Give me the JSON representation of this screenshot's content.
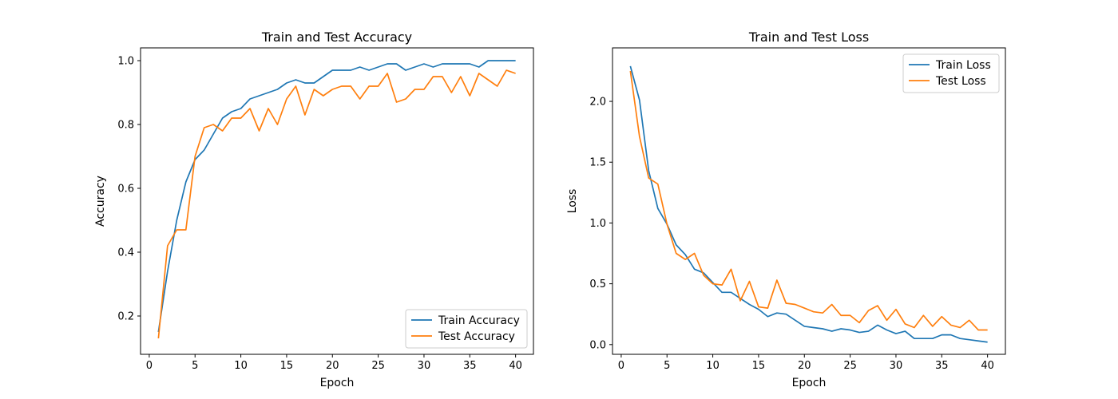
{
  "chart_data": [
    {
      "type": "line",
      "title": "Train and Test Accuracy",
      "xlabel": "Epoch",
      "ylabel": "Accuracy",
      "xlim": [
        -0.95,
        41.95
      ],
      "ylim": [
        0.08,
        1.04
      ],
      "xticks": [
        0,
        5,
        10,
        15,
        20,
        25,
        30,
        35,
        40
      ],
      "yticks": [
        0.2,
        0.4,
        0.6,
        0.8,
        1.0
      ],
      "ytick_labels": [
        "0.2",
        "0.4",
        "0.6",
        "0.8",
        "1.0"
      ],
      "legend_position": "lower-right",
      "x": [
        1,
        2,
        3,
        4,
        5,
        6,
        7,
        8,
        9,
        10,
        11,
        12,
        13,
        14,
        15,
        16,
        17,
        18,
        19,
        20,
        21,
        22,
        23,
        24,
        25,
        26,
        27,
        28,
        29,
        30,
        31,
        32,
        33,
        34,
        35,
        36,
        37,
        38,
        39,
        40
      ],
      "series": [
        {
          "name": "Train Accuracy",
          "color": "#1f77b4",
          "values": [
            0.15,
            0.34,
            0.5,
            0.62,
            0.69,
            0.72,
            0.77,
            0.82,
            0.84,
            0.85,
            0.88,
            0.89,
            0.9,
            0.91,
            0.93,
            0.94,
            0.93,
            0.93,
            0.95,
            0.97,
            0.97,
            0.97,
            0.98,
            0.97,
            0.98,
            0.99,
            0.99,
            0.97,
            0.98,
            0.99,
            0.98,
            0.99,
            0.99,
            0.99,
            0.99,
            0.98,
            1.0,
            1.0,
            1.0,
            1.0
          ]
        },
        {
          "name": "Test Accuracy",
          "color": "#ff7f0e",
          "values": [
            0.13,
            0.42,
            0.47,
            0.47,
            0.7,
            0.79,
            0.8,
            0.78,
            0.82,
            0.82,
            0.85,
            0.78,
            0.85,
            0.8,
            0.88,
            0.92,
            0.83,
            0.91,
            0.89,
            0.91,
            0.92,
            0.92,
            0.88,
            0.92,
            0.92,
            0.96,
            0.87,
            0.88,
            0.91,
            0.91,
            0.95,
            0.95,
            0.9,
            0.95,
            0.89,
            0.96,
            0.94,
            0.92,
            0.97,
            0.96
          ]
        }
      ]
    },
    {
      "type": "line",
      "title": "Train and Test Loss",
      "xlabel": "Epoch",
      "ylabel": "Loss",
      "xlim": [
        -0.95,
        41.95
      ],
      "ylim": [
        -0.08,
        2.44
      ],
      "xticks": [
        0,
        5,
        10,
        15,
        20,
        25,
        30,
        35,
        40
      ],
      "yticks": [
        0.0,
        0.5,
        1.0,
        1.5,
        2.0
      ],
      "ytick_labels": [
        "0.0",
        "0.5",
        "1.0",
        "1.5",
        "2.0"
      ],
      "legend_position": "upper-right",
      "x": [
        1,
        2,
        3,
        4,
        5,
        6,
        7,
        8,
        9,
        10,
        11,
        12,
        13,
        14,
        15,
        16,
        17,
        18,
        19,
        20,
        21,
        22,
        23,
        24,
        25,
        26,
        27,
        28,
        29,
        30,
        31,
        32,
        33,
        34,
        35,
        36,
        37,
        38,
        39,
        40
      ],
      "series": [
        {
          "name": "Train Loss",
          "color": "#1f77b4",
          "values": [
            2.29,
            2.01,
            1.43,
            1.12,
            0.99,
            0.82,
            0.74,
            0.62,
            0.59,
            0.51,
            0.43,
            0.43,
            0.38,
            0.33,
            0.29,
            0.23,
            0.26,
            0.25,
            0.2,
            0.15,
            0.14,
            0.13,
            0.11,
            0.13,
            0.12,
            0.1,
            0.11,
            0.16,
            0.12,
            0.09,
            0.11,
            0.05,
            0.05,
            0.05,
            0.08,
            0.08,
            0.05,
            0.04,
            0.03,
            0.02
          ]
        },
        {
          "name": "Test Loss",
          "color": "#ff7f0e",
          "values": [
            2.25,
            1.71,
            1.37,
            1.32,
            0.99,
            0.75,
            0.7,
            0.75,
            0.57,
            0.5,
            0.49,
            0.62,
            0.36,
            0.52,
            0.31,
            0.3,
            0.53,
            0.34,
            0.33,
            0.3,
            0.27,
            0.26,
            0.33,
            0.24,
            0.24,
            0.18,
            0.28,
            0.32,
            0.2,
            0.29,
            0.17,
            0.14,
            0.24,
            0.15,
            0.23,
            0.16,
            0.14,
            0.2,
            0.12,
            0.12
          ]
        }
      ]
    }
  ]
}
